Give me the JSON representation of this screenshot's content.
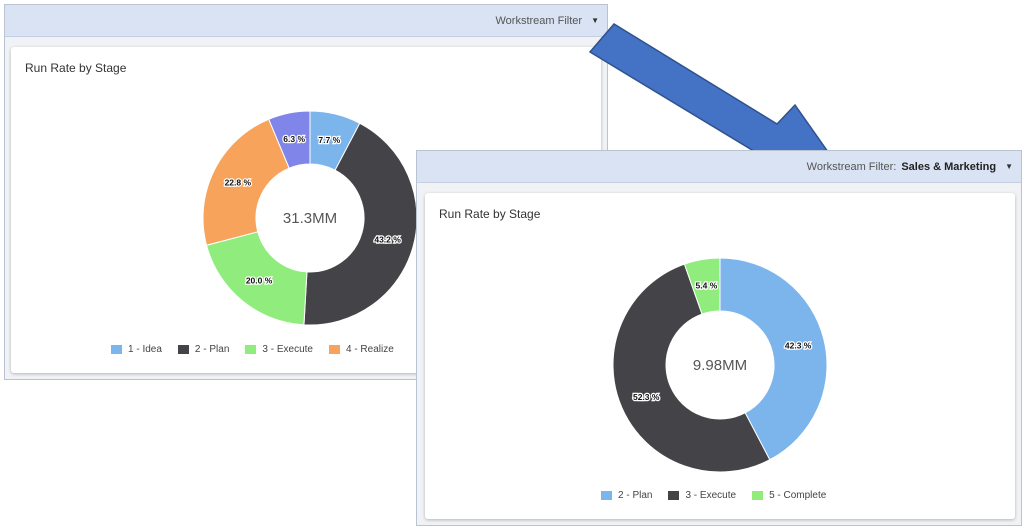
{
  "panel_left": {
    "filter_label": "Workstream Filter",
    "filter_value": "",
    "card_title": "Run Rate by Stage"
  },
  "panel_right": {
    "filter_label": "Workstream Filter:",
    "filter_value": "Sales & Marketing",
    "card_title": "Run Rate by Stage"
  },
  "icons": {
    "dropdown": "caret-down-icon",
    "arrow": "arrow-right-down-icon"
  },
  "colors": {
    "idea": "#7cb5ec",
    "plan": "#434348",
    "execute": "#90ed7d",
    "realize": "#f7a35c",
    "complete": "#8085e9",
    "arrow_fill": "#4472c4",
    "header_bg": "#d9e3f3"
  },
  "chart_data": [
    {
      "type": "pie",
      "title": "Run Rate by Stage",
      "center_label": "31.3MM",
      "slices": [
        {
          "label": "1 - Idea",
          "value": 7.7,
          "display": "7.7 %",
          "color": "#7cb5ec"
        },
        {
          "label": "2 - Plan",
          "value": 43.2,
          "display": "43.2 %",
          "color": "#434348"
        },
        {
          "label": "3 - Execute",
          "value": 20.0,
          "display": "20.0 %",
          "color": "#90ed7d"
        },
        {
          "label": "4 - Realize",
          "value": 22.8,
          "display": "22.8 %",
          "color": "#f7a35c"
        },
        {
          "label": "",
          "value": 6.3,
          "display": "6.3 %",
          "color": "#8085e9"
        }
      ],
      "legend": [
        {
          "label": "1 - Idea",
          "color": "#7cb5ec"
        },
        {
          "label": "2 - Plan",
          "color": "#434348"
        },
        {
          "label": "3 - Execute",
          "color": "#90ed7d"
        },
        {
          "label": "4 - Realize",
          "color": "#f7a35c"
        }
      ],
      "legend_placement": "bottom"
    },
    {
      "type": "pie",
      "title": "Run Rate by Stage",
      "center_label": "9.98MM",
      "slices": [
        {
          "label": "2 - Plan",
          "value": 42.3,
          "display": "42.3 %",
          "color": "#7cb5ec"
        },
        {
          "label": "3 - Execute",
          "value": 52.3,
          "display": "52.3 %",
          "color": "#434348"
        },
        {
          "label": "5 - Complete",
          "value": 5.4,
          "display": "5.4 %",
          "color": "#90ed7d"
        }
      ],
      "legend": [
        {
          "label": "2 - Plan",
          "color": "#7cb5ec"
        },
        {
          "label": "3 - Execute",
          "color": "#434348"
        },
        {
          "label": "5 - Complete",
          "color": "#90ed7d"
        }
      ],
      "legend_placement": "bottom"
    }
  ]
}
